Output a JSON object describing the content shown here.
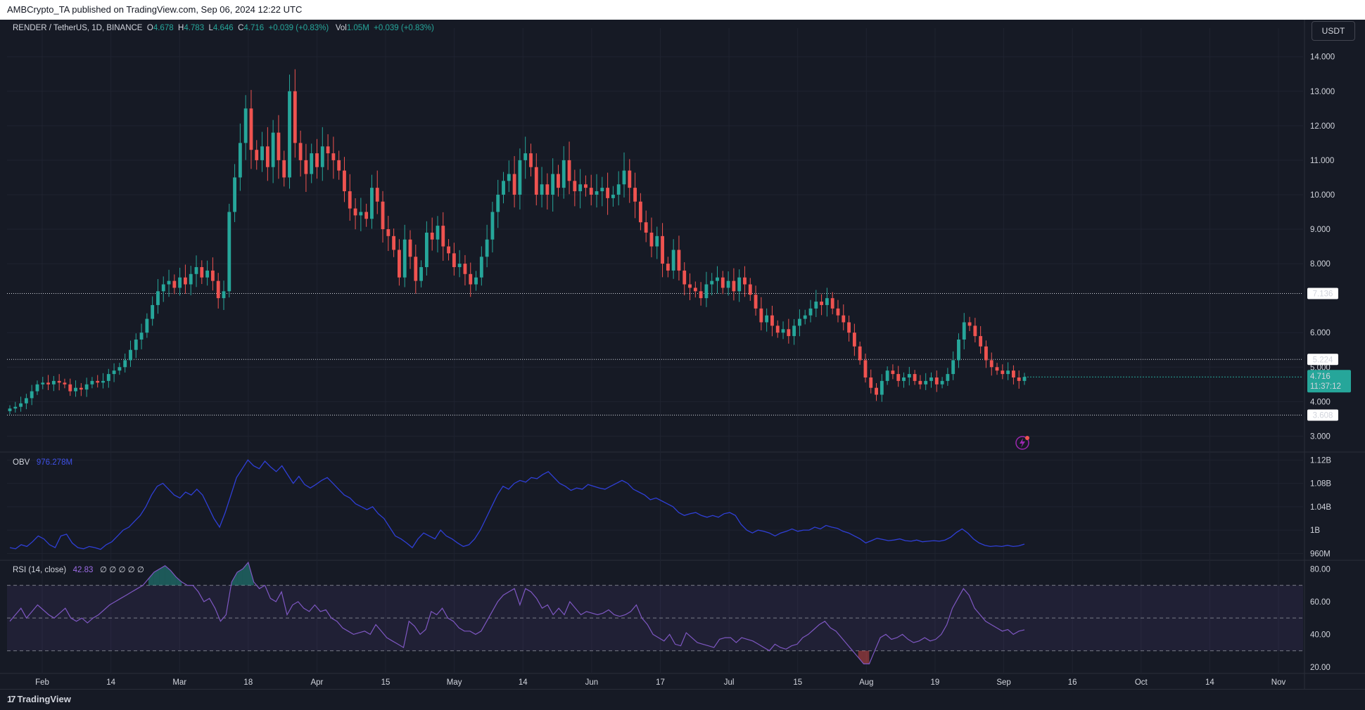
{
  "header": {
    "publish_line": "AMBCrypto_TA published on TradingView.com, Sep 06, 2024 12:22 UTC"
  },
  "legend": {
    "symbol": "RENDER / TetherUS, 1D, BINANCE",
    "o_label": "O",
    "o_value": "4.678",
    "h_label": "H",
    "h_value": "4.783",
    "l_label": "L",
    "l_value": "4.646",
    "c_label": "C",
    "c_value": "4.716",
    "change": "+0.039 (+0.83%)",
    "vol_label": "Vol",
    "vol_value": "1.05M",
    "vol_change": "+0.039 (+0.83%)"
  },
  "currency_button": "USDT",
  "obv_legend": {
    "name": "OBV",
    "value": "976.278M"
  },
  "rsi_legend": {
    "name": "RSI (14, close)",
    "value": "42.83",
    "placeholders": "∅ ∅ ∅ ∅ ∅"
  },
  "price_labels": {
    "level_upper": "7.136",
    "level_mid": "5.224",
    "level_lower": "3.608",
    "current_price": "4.716",
    "countdown": "11:37:12"
  },
  "footer": {
    "brand": "TradingView",
    "logo": "17"
  },
  "colors": {
    "up": "#26a69a",
    "down": "#ef5350",
    "obv": "#2f3fd6",
    "rsi": "#7e57c2",
    "bg": "#161a25"
  },
  "chart_data": [
    {
      "type": "candlestick",
      "title": "RENDER / TetherUS, 1D, BINANCE",
      "x_tick_labels": [
        "Feb",
        "14",
        "Mar",
        "18",
        "Apr",
        "15",
        "May",
        "14",
        "Jun",
        "17",
        "Jul",
        "15",
        "Aug",
        "19",
        "Sep",
        "16",
        "Oct",
        "14",
        "Nov"
      ],
      "y_tick_labels": [
        "14.000",
        "13.000",
        "12.000",
        "11.000",
        "10.000",
        "9.000",
        "8.000",
        "6.000",
        "5.000",
        "4.000",
        "3.000"
      ],
      "ylim": [
        2.6,
        14.3
      ],
      "horizontal_levels": [
        7.136,
        5.224,
        3.608
      ],
      "last_close": 4.716,
      "approx_closes": [
        3.8,
        3.85,
        3.95,
        4.1,
        4.3,
        4.5,
        4.55,
        4.5,
        4.6,
        4.55,
        4.5,
        4.3,
        4.4,
        4.35,
        4.5,
        4.6,
        4.55,
        4.6,
        4.8,
        4.9,
        5.0,
        5.2,
        5.5,
        5.8,
        6.0,
        6.4,
        6.8,
        7.2,
        7.4,
        7.5,
        7.3,
        7.6,
        7.4,
        7.7,
        7.9,
        7.6,
        7.8,
        7.5,
        7.0,
        7.2,
        9.5,
        10.5,
        11.5,
        12.5,
        11.3,
        11.0,
        11.4,
        10.8,
        11.8,
        11.0,
        10.5,
        13.0,
        11.5,
        11.0,
        10.6,
        11.2,
        10.8,
        11.4,
        11.2,
        11.0,
        10.7,
        10.1,
        9.6,
        9.4,
        9.5,
        9.3,
        10.2,
        9.8,
        9.0,
        8.8,
        8.4,
        7.6,
        8.7,
        8.2,
        7.5,
        7.9,
        8.9,
        8.7,
        9.1,
        8.5,
        8.3,
        7.9,
        8.0,
        7.7,
        7.4,
        7.6,
        8.2,
        8.7,
        9.5,
        10.0,
        10.4,
        10.6,
        10.0,
        11.0,
        11.2,
        10.8,
        10.0,
        10.3,
        10.0,
        10.6,
        10.2,
        11.0,
        10.4,
        10.1,
        10.3,
        10.2,
        10.0,
        10.1,
        10.2,
        9.9,
        10.0,
        10.3,
        10.7,
        10.2,
        9.8,
        9.2,
        8.9,
        8.5,
        8.8,
        8.0,
        7.8,
        8.4,
        7.8,
        7.4,
        7.3,
        7.2,
        7.0,
        7.4,
        7.5,
        7.6,
        7.3,
        7.5,
        7.2,
        7.6,
        7.4,
        7.1,
        6.7,
        6.3,
        6.5,
        6.2,
        6.0,
        6.1,
        5.9,
        6.2,
        6.4,
        6.5,
        6.7,
        6.9,
        6.8,
        7.0,
        6.7,
        6.5,
        6.3,
        6.0,
        5.6,
        5.2,
        4.7,
        4.4,
        4.2,
        4.6,
        4.9,
        4.8,
        4.6,
        4.7,
        4.8,
        4.6,
        4.5,
        4.6,
        4.7,
        4.5,
        4.6,
        4.8,
        5.2,
        5.8,
        6.3,
        6.2,
        5.9,
        5.6,
        5.2,
        5.0,
        4.9,
        4.8,
        4.9,
        4.7,
        4.6,
        4.716
      ],
      "up_color": "#26a69a",
      "down_color": "#ef5350"
    },
    {
      "type": "line",
      "title": "OBV",
      "y_tick_labels": [
        "1.12B",
        "1.08B",
        "1.04B",
        "1B",
        "960M"
      ],
      "ylim": [
        0.952,
        1.13
      ],
      "series": [
        {
          "name": "OBV",
          "values": [
            0.97,
            0.968,
            0.975,
            0.972,
            0.98,
            0.99,
            0.985,
            0.975,
            0.97,
            0.99,
            0.993,
            0.978,
            0.97,
            0.968,
            0.972,
            0.97,
            0.967,
            0.975,
            0.98,
            0.99,
            1.0,
            1.005,
            1.015,
            1.025,
            1.04,
            1.06,
            1.075,
            1.08,
            1.07,
            1.06,
            1.055,
            1.065,
            1.06,
            1.07,
            1.06,
            1.04,
            1.02,
            1.005,
            1.03,
            1.06,
            1.09,
            1.105,
            1.12,
            1.11,
            1.105,
            1.118,
            1.108,
            1.1,
            1.11,
            1.095,
            1.08,
            1.092,
            1.078,
            1.072,
            1.078,
            1.085,
            1.09,
            1.08,
            1.07,
            1.06,
            1.055,
            1.045,
            1.04,
            1.035,
            1.04,
            1.028,
            1.02,
            1.005,
            0.99,
            0.985,
            0.978,
            0.97,
            0.985,
            0.995,
            0.99,
            0.985,
            1.0,
            0.99,
            0.985,
            0.978,
            0.972,
            0.975,
            0.985,
            1.0,
            1.02,
            1.04,
            1.06,
            1.075,
            1.07,
            1.08,
            1.085,
            1.082,
            1.09,
            1.088,
            1.095,
            1.1,
            1.09,
            1.08,
            1.075,
            1.068,
            1.072,
            1.07,
            1.078,
            1.075,
            1.072,
            1.07,
            1.075,
            1.08,
            1.085,
            1.08,
            1.07,
            1.065,
            1.06,
            1.052,
            1.055,
            1.05,
            1.045,
            1.04,
            1.03,
            1.025,
            1.028,
            1.03,
            1.025,
            1.022,
            1.025,
            1.022,
            1.028,
            1.03,
            1.025,
            1.01,
            1.0,
            0.995,
            1.0,
            0.998,
            0.995,
            0.99,
            0.995,
            0.998,
            1.002,
            0.998,
            1.0,
            1.0,
            1.005,
            1.002,
            1.008,
            1.005,
            1.003,
            0.998,
            0.995,
            0.99,
            0.985,
            0.978,
            0.982,
            0.986,
            0.984,
            0.982,
            0.983,
            0.985,
            0.982,
            0.981,
            0.983,
            0.98,
            0.981,
            0.982,
            0.981,
            0.983,
            0.988,
            0.996,
            1.002,
            0.995,
            0.985,
            0.978,
            0.974,
            0.972,
            0.973,
            0.972,
            0.974,
            0.972,
            0.973,
            0.976
          ]
        }
      ]
    },
    {
      "type": "line",
      "title": "RSI (14, close)",
      "y_tick_labels": [
        "80.00",
        "60.00",
        "40.00",
        "20.00"
      ],
      "ylim": [
        17,
        84
      ],
      "bands": [
        30,
        50,
        70
      ],
      "series": [
        {
          "name": "RSI",
          "values": [
            48,
            52,
            56,
            50,
            54,
            58,
            55,
            52,
            50,
            53,
            56,
            50,
            48,
            50,
            47,
            50,
            52,
            55,
            58,
            60,
            62,
            64,
            66,
            68,
            70,
            74,
            78,
            80,
            82,
            79,
            75,
            72,
            70,
            70,
            66,
            60,
            62,
            56,
            48,
            52,
            72,
            78,
            80,
            84,
            72,
            68,
            70,
            62,
            60,
            66,
            52,
            58,
            60,
            56,
            54,
            58,
            54,
            55,
            50,
            48,
            44,
            42,
            40,
            41,
            42,
            40,
            46,
            42,
            38,
            36,
            34,
            32,
            48,
            45,
            40,
            43,
            54,
            52,
            56,
            50,
            48,
            44,
            42,
            42,
            40,
            42,
            48,
            54,
            60,
            64,
            66,
            68,
            58,
            68,
            66,
            62,
            56,
            58,
            52,
            56,
            52,
            60,
            56,
            52,
            54,
            53,
            52,
            53,
            55,
            52,
            51,
            52,
            54,
            58,
            50,
            46,
            40,
            38,
            36,
            40,
            34,
            33,
            41,
            38,
            35,
            34,
            33,
            32,
            37,
            38,
            38,
            35,
            38,
            37,
            36,
            34,
            32,
            30,
            34,
            32,
            31,
            33,
            34,
            38,
            40,
            43,
            46,
            48,
            44,
            42,
            38,
            34,
            30,
            26,
            22,
            22,
            30,
            38,
            40,
            37,
            38,
            40,
            37,
            35,
            36,
            38,
            36,
            37,
            40,
            46,
            56,
            62,
            68,
            64,
            56,
            52,
            48,
            46,
            44,
            42,
            43,
            40,
            42,
            42.83
          ]
        }
      ]
    }
  ]
}
